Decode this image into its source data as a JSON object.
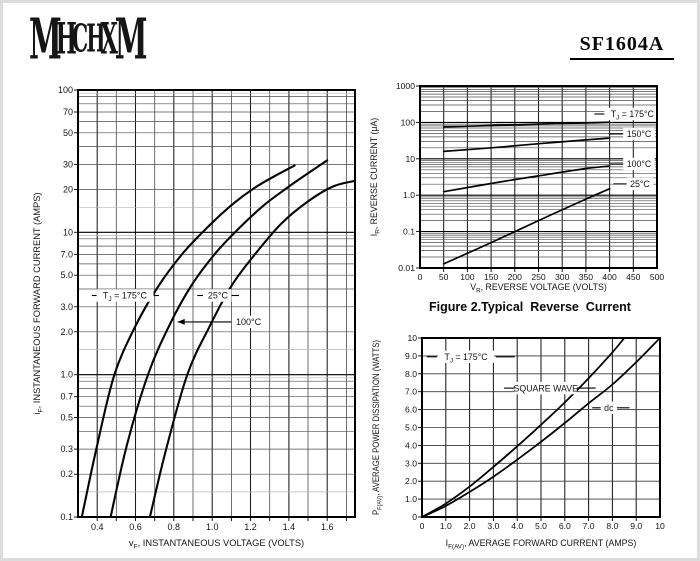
{
  "header": {
    "logo_text": "MHCHXM",
    "part_number": "SF1604A"
  },
  "figure2_caption": "Figure 2.Typical  Reverse  Current",
  "chart_data": [
    {
      "id": "forward-characteristics",
      "type": "line",
      "x_axis": {
        "scale": "linear",
        "min": 0.3,
        "max": 1.745,
        "grid": {
          "from": 0.4,
          "to": 1.7,
          "step": 0.1
        },
        "ticks": [
          [
            0.4,
            "0.4"
          ],
          [
            0.6,
            "0.6"
          ],
          [
            0.8,
            "0.8"
          ],
          [
            1.0,
            "1.0"
          ],
          [
            1.2,
            "1.2"
          ],
          [
            1.4,
            "1.4"
          ],
          [
            1.6,
            "1.6"
          ]
        ],
        "title_segs": [
          [
            "v"
          ],
          [
            "F",
            1
          ],
          [
            ", INSTANTANEOUS VOLTAGE (VOLTS)"
          ]
        ]
      },
      "y_axis": {
        "scale": "log",
        "min": 0.1,
        "max": 100,
        "ticks": [
          [
            100,
            "100"
          ],
          [
            70,
            "70"
          ],
          [
            50,
            "50"
          ],
          [
            30,
            "30"
          ],
          [
            20,
            "20"
          ],
          [
            10,
            "10"
          ],
          [
            7,
            "7.0"
          ],
          [
            5,
            "5.0"
          ],
          [
            3,
            "3.0"
          ],
          [
            2,
            "2.0"
          ],
          [
            1,
            "1.0"
          ],
          [
            0.7,
            "0.7"
          ],
          [
            0.5,
            "0.5"
          ],
          [
            0.3,
            "0.3"
          ],
          [
            0.2,
            "0.2"
          ],
          [
            0.1,
            "0.1"
          ]
        ],
        "title_segs": [
          [
            "i"
          ],
          [
            "F",
            1
          ],
          [
            ", INSTANTANEOUS FORWARD CURRENT (AMPS)"
          ]
        ]
      },
      "series": [
        {
          "name": "TJ = 175°C",
          "points": [
            [
              0.32,
              0.1
            ],
            [
              0.4,
              0.32
            ],
            [
              0.49,
              1.0
            ],
            [
              0.6,
              2.2
            ],
            [
              0.72,
              4.2
            ],
            [
              0.85,
              7.2
            ],
            [
              0.98,
              11
            ],
            [
              1.1,
              15.5
            ],
            [
              1.22,
              20.5
            ],
            [
              1.33,
              25
            ],
            [
              1.43,
              29.5
            ]
          ]
        },
        {
          "name": "100°C",
          "points": [
            [
              0.47,
              0.1
            ],
            [
              0.555,
              0.32
            ],
            [
              0.665,
              1.0
            ],
            [
              0.775,
              2.2
            ],
            [
              0.89,
              4.2
            ],
            [
              1.02,
              7.2
            ],
            [
              1.15,
              11
            ],
            [
              1.27,
              15.5
            ],
            [
              1.39,
              20.5
            ],
            [
              1.5,
              26
            ],
            [
              1.6,
              32
            ]
          ]
        },
        {
          "name": "25°C",
          "points": [
            [
              0.675,
              0.1
            ],
            [
              0.76,
              0.3
            ],
            [
              0.87,
              1.0
            ],
            [
              0.98,
              2.1
            ],
            [
              1.1,
              4.2
            ],
            [
              1.23,
              7.2
            ],
            [
              1.36,
              11.5
            ],
            [
              1.5,
              16.5
            ],
            [
              1.63,
              21
            ],
            [
              1.745,
              23
            ]
          ]
        }
      ],
      "annotations": [
        {
          "segs": [
            [
              "T"
            ],
            [
              "J",
              1
            ],
            [
              " = 175°C"
            ]
          ],
          "x": 0.545,
          "y": 3.6
        },
        {
          "segs": [
            [
              "25°C"
            ]
          ],
          "x": 1.03,
          "y": 3.6
        },
        {
          "segs": [
            [
              "100°C"
            ]
          ],
          "x": 1.19,
          "y": 2.35
        }
      ],
      "leaders": [
        [
          0.372,
          3.6,
          0.398,
          3.6
        ],
        [
          0.695,
          3.6,
          0.722,
          3.6
        ],
        [
          0.922,
          3.6,
          0.952,
          3.6
        ],
        [
          1.095,
          3.6,
          1.14,
          3.6
        ],
        [
          1.1,
          2.35,
          0.82,
          2.35,
          1
        ]
      ]
    },
    {
      "id": "reverse-current",
      "type": "line",
      "x_axis": {
        "scale": "linear",
        "min": 0,
        "max": 500,
        "ticks": [
          [
            0,
            "0"
          ],
          [
            50,
            "50"
          ],
          [
            100,
            "100"
          ],
          [
            150,
            "150"
          ],
          [
            200,
            "200"
          ],
          [
            250,
            "250"
          ],
          [
            300,
            "300"
          ],
          [
            350,
            "350"
          ],
          [
            400,
            "400"
          ],
          [
            450,
            "450"
          ],
          [
            500,
            "500"
          ]
        ],
        "title_segs": [
          [
            "V"
          ],
          [
            "R",
            1
          ],
          [
            ", REVERSE VOLTAGE (VOLTS)"
          ]
        ]
      },
      "y_axis": {
        "scale": "log",
        "min": 0.01,
        "max": 1000,
        "ticks": [
          [
            1000,
            "1000"
          ],
          [
            100,
            "100"
          ],
          [
            10,
            "10"
          ],
          [
            1,
            "1.0"
          ],
          [
            0.1,
            "0.1"
          ],
          [
            0.01,
            "0.01"
          ]
        ],
        "title_segs": [
          [
            "I"
          ],
          [
            "R",
            1
          ],
          [
            ", REVERSE CURRENT (μA)"
          ]
        ]
      },
      "series": [
        {
          "name": "TJ = 175°C",
          "points": [
            [
              50,
              75
            ],
            [
              150,
              82
            ],
            [
              250,
              90
            ],
            [
              350,
              97
            ],
            [
              400,
              101
            ]
          ]
        },
        {
          "name": "150°C",
          "points": [
            [
              50,
              16
            ],
            [
              150,
              20
            ],
            [
              250,
              26
            ],
            [
              350,
              33
            ],
            [
              400,
              37
            ]
          ]
        },
        {
          "name": "100°C",
          "points": [
            [
              50,
              1.25
            ],
            [
              150,
              2.1
            ],
            [
              250,
              3.4
            ],
            [
              350,
              5.4
            ],
            [
              400,
              6.3
            ]
          ]
        },
        {
          "name": "25°C",
          "points": [
            [
              50,
              0.013
            ],
            [
              150,
              0.05
            ],
            [
              250,
              0.2
            ],
            [
              350,
              0.78
            ],
            [
              400,
              1.5
            ]
          ]
        }
      ],
      "annotations": [
        {
          "segs": [
            [
              "T"
            ],
            [
              "J",
              1
            ],
            [
              " = 175°C"
            ]
          ],
          "x": 448,
          "y": 170
        },
        {
          "segs": [
            [
              "150°C"
            ]
          ],
          "x": 462,
          "y": 48
        },
        {
          "segs": [
            [
              "100°C"
            ]
          ],
          "x": 462,
          "y": 7.2
        },
        {
          "segs": [
            [
              "25°C"
            ]
          ],
          "x": 464,
          "y": 2.05
        }
      ],
      "leaders": [
        [
          368,
          170,
          396,
          170
        ],
        [
          398,
          48,
          432,
          48
        ],
        [
          400,
          7.2,
          432,
          7.2
        ],
        [
          408,
          2.05,
          438,
          2.05
        ]
      ]
    },
    {
      "id": "power-dissipation",
      "type": "line",
      "x_axis": {
        "scale": "linear",
        "min": 0,
        "max": 10,
        "ticks": [
          [
            0,
            "0"
          ],
          [
            1,
            "1.0"
          ],
          [
            2,
            "2.0"
          ],
          [
            3,
            "3.0"
          ],
          [
            4,
            "4.0"
          ],
          [
            5,
            "5.0"
          ],
          [
            6,
            "6.0"
          ],
          [
            7,
            "7.0"
          ],
          [
            8,
            "8.0"
          ],
          [
            9,
            "9.0"
          ],
          [
            10,
            "10"
          ]
        ],
        "title_segs": [
          [
            "I"
          ],
          [
            "F(AV)",
            1
          ],
          [
            ", AVERAGE FORWARD CURRENT (AMPS)"
          ]
        ]
      },
      "y_axis": {
        "scale": "linear",
        "min": 0,
        "max": 10,
        "ticks": [
          [
            10,
            "10"
          ],
          [
            9,
            "9.0"
          ],
          [
            8,
            "8.0"
          ],
          [
            7,
            "7.0"
          ],
          [
            6,
            "6.0"
          ],
          [
            5,
            "5.0"
          ],
          [
            4,
            "4.0"
          ],
          [
            3,
            "3.0"
          ],
          [
            2,
            "2.0"
          ],
          [
            1,
            "1.0"
          ],
          [
            0,
            "0"
          ]
        ],
        "title_segs": [
          [
            "P"
          ],
          [
            "F(AV)",
            1
          ],
          [
            ", AVERAGE POWER DISSIPATION (WATTS)"
          ]
        ]
      },
      "series": [
        {
          "name": "SQUARE WAVE",
          "points": [
            [
              0,
              0
            ],
            [
              1,
              0.75
            ],
            [
              2,
              1.7
            ],
            [
              3,
              2.8
            ],
            [
              4,
              3.95
            ],
            [
              5,
              5.15
            ],
            [
              6,
              6.4
            ],
            [
              7,
              7.75
            ],
            [
              8,
              9.2
            ],
            [
              8.5,
              10
            ]
          ]
        },
        {
          "name": "dc",
          "points": [
            [
              0,
              0
            ],
            [
              1,
              0.62
            ],
            [
              2,
              1.4
            ],
            [
              3,
              2.25
            ],
            [
              4,
              3.2
            ],
            [
              5,
              4.2
            ],
            [
              6,
              5.25
            ],
            [
              7,
              6.35
            ],
            [
              8,
              7.4
            ],
            [
              9,
              8.65
            ],
            [
              10,
              10
            ]
          ]
        }
      ],
      "annotations": [
        {
          "segs": [
            [
              "T"
            ],
            [
              "J",
              1
            ],
            [
              " = 175°C"
            ]
          ],
          "x": 1.85,
          "y": 8.95
        },
        {
          "segs": [
            [
              "SQUARE WAVE"
            ]
          ],
          "x": 5.2,
          "y": 7.2
        },
        {
          "segs": [
            [
              "dc"
            ]
          ],
          "x": 7.85,
          "y": 6.1
        }
      ],
      "leaders": [
        [
          0.2,
          8.95,
          0.62,
          8.95
        ],
        [
          3.1,
          8.95,
          3.9,
          8.95
        ],
        [
          3.45,
          7.2,
          3.95,
          7.2
        ],
        [
          6.45,
          7.2,
          7.3,
          7.2
        ],
        [
          7.15,
          6.1,
          7.52,
          6.1
        ],
        [
          8.18,
          6.1,
          8.72,
          6.1
        ]
      ]
    }
  ]
}
